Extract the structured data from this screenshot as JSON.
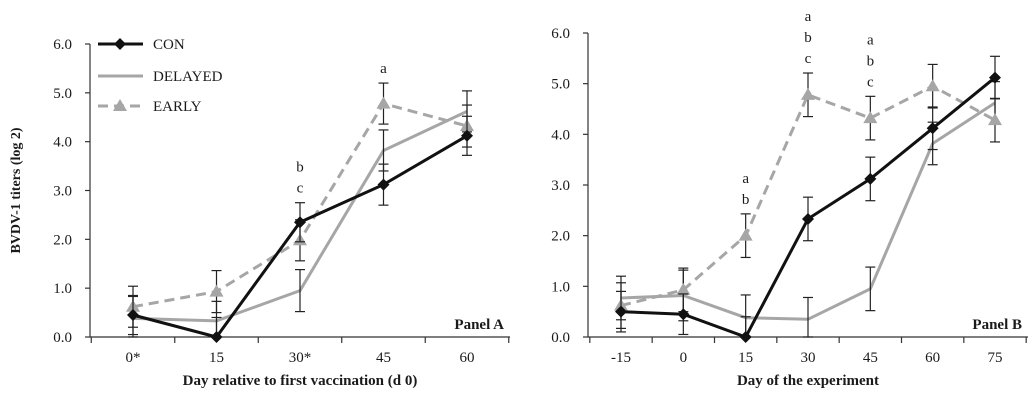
{
  "chart_data": [
    {
      "type": "line",
      "panel_label": "Panel A",
      "ylabel": "BVDV-1 titers (log 2)",
      "xlabel": "Day relative to first vaccination (d 0)",
      "categories": [
        "0*",
        "15",
        "30*",
        "45",
        "60"
      ],
      "ylim": [
        0,
        6
      ],
      "yticks": [
        "0.0",
        "1.0",
        "2.0",
        "3.0",
        "4.0",
        "5.0",
        "6.0"
      ],
      "legend": {
        "position": "top-left",
        "entries": [
          "CON",
          "DELAYED",
          "EARLY"
        ]
      },
      "series": [
        {
          "name": "CON",
          "color": "#111111",
          "style": "solid",
          "marker": "diamond",
          "values": [
            0.45,
            0.0,
            2.35,
            3.12,
            4.12
          ],
          "err": [
            0.4,
            0.4,
            0.4,
            0.42,
            0.4
          ]
        },
        {
          "name": "DELAYED",
          "color": "#a6a6a6",
          "style": "solid",
          "marker": "none",
          "values": [
            0.38,
            0.33,
            0.95,
            3.82,
            4.62
          ],
          "err": [
            0.45,
            0.4,
            0.43,
            0.42,
            0.42
          ]
        },
        {
          "name": "EARLY",
          "color": "#a6a6a6",
          "style": "dashed",
          "marker": "triangle",
          "values": [
            0.62,
            0.93,
            1.98,
            4.78,
            4.32
          ],
          "err": [
            0.42,
            0.43,
            0.42,
            0.42,
            0.43
          ]
        }
      ],
      "annotations": [
        {
          "x": "30*",
          "letters": [
            "b",
            "c"
          ]
        },
        {
          "x": "45",
          "letters": [
            "a"
          ]
        }
      ]
    },
    {
      "type": "line",
      "panel_label": "Panel B",
      "ylabel": "",
      "xlabel": "Day of the experiment",
      "categories": [
        "-15",
        "0",
        "15",
        "30",
        "45",
        "60",
        "75"
      ],
      "ylim": [
        0,
        6
      ],
      "yticks": [
        "0.0",
        "1.0",
        "2.0",
        "3.0",
        "4.0",
        "5.0",
        "6.0"
      ],
      "series": [
        {
          "name": "CON",
          "color": "#111111",
          "style": "solid",
          "marker": "diamond",
          "values": [
            0.5,
            0.45,
            0.0,
            2.33,
            3.12,
            4.12,
            5.12
          ],
          "err": [
            0.4,
            0.4,
            0.4,
            0.43,
            0.43,
            0.42,
            0.42
          ]
        },
        {
          "name": "DELAYED",
          "color": "#a6a6a6",
          "style": "solid",
          "marker": "none",
          "values": [
            0.77,
            0.82,
            0.38,
            0.35,
            0.95,
            3.82,
            4.62
          ],
          "err": [
            0.43,
            0.5,
            0.45,
            0.43,
            0.43,
            0.42,
            0.42
          ]
        },
        {
          "name": "EARLY",
          "color": "#a6a6a6",
          "style": "dashed",
          "marker": "triangle",
          "values": [
            0.62,
            0.93,
            2.0,
            4.78,
            4.32,
            4.95,
            4.28
          ],
          "err": [
            0.45,
            0.43,
            0.43,
            0.43,
            0.43,
            0.43,
            0.43
          ]
        }
      ],
      "annotations": [
        {
          "x": "15",
          "letters": [
            "a",
            "b"
          ]
        },
        {
          "x": "30",
          "letters": [
            "a",
            "b",
            "c"
          ]
        },
        {
          "x": "45",
          "letters": [
            "a",
            "b",
            "c"
          ]
        }
      ]
    }
  ]
}
